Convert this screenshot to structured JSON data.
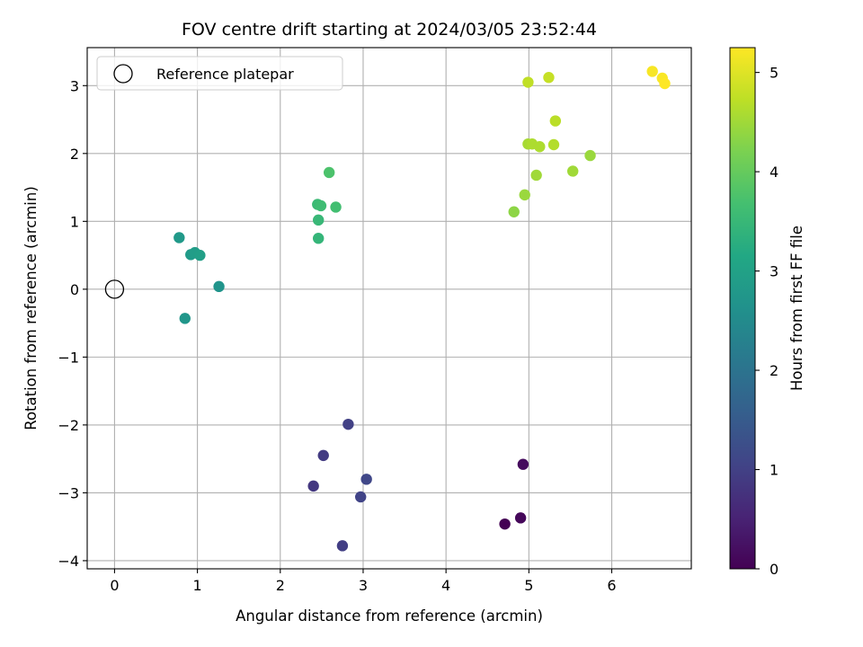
{
  "chart_data": {
    "type": "scatter",
    "title": "FOV centre drift starting at 2024/03/05 23:52:44",
    "xlabel": "Angular distance from reference (arcmin)",
    "ylabel": "Rotation from reference (arcmin)",
    "xlim": [
      -0.33,
      6.96
    ],
    "ylim": [
      -4.12,
      3.56
    ],
    "xticks": [
      0,
      1,
      2,
      3,
      4,
      5,
      6
    ],
    "yticks": [
      -4,
      -3,
      -2,
      -1,
      0,
      1,
      2,
      3
    ],
    "grid": true,
    "colormap": "viridis",
    "colorbar": {
      "label": "Hours from first FF file",
      "range": [
        0,
        5.25
      ],
      "ticks": [
        0,
        1,
        2,
        3,
        4,
        5
      ]
    },
    "legend": {
      "position": "top-left",
      "entries": [
        "Reference platepar"
      ]
    },
    "reference_point": {
      "x": 0,
      "y": 0
    },
    "points": [
      {
        "x": 4.71,
        "y": -3.46,
        "hours": 0.0
      },
      {
        "x": 4.9,
        "y": -3.37,
        "hours": 0.1
      },
      {
        "x": 4.93,
        "y": -2.58,
        "hours": 0.15
      },
      {
        "x": 2.4,
        "y": -2.9,
        "hours": 0.85
      },
      {
        "x": 2.52,
        "y": -2.45,
        "hours": 0.9
      },
      {
        "x": 2.75,
        "y": -3.78,
        "hours": 0.95
      },
      {
        "x": 2.82,
        "y": -1.99,
        "hours": 1.0
      },
      {
        "x": 2.97,
        "y": -3.06,
        "hours": 1.05
      },
      {
        "x": 3.04,
        "y": -2.8,
        "hours": 1.1
      },
      {
        "x": 0.85,
        "y": -0.43,
        "hours": 2.75
      },
      {
        "x": 1.26,
        "y": 0.04,
        "hours": 2.7
      },
      {
        "x": 0.78,
        "y": 0.76,
        "hours": 2.8
      },
      {
        "x": 0.92,
        "y": 0.51,
        "hours": 2.85
      },
      {
        "x": 0.97,
        "y": 0.54,
        "hours": 2.9
      },
      {
        "x": 1.03,
        "y": 0.5,
        "hours": 2.95
      },
      {
        "x": 2.46,
        "y": 0.75,
        "hours": 3.45
      },
      {
        "x": 2.46,
        "y": 1.02,
        "hours": 3.5
      },
      {
        "x": 2.45,
        "y": 1.25,
        "hours": 3.55
      },
      {
        "x": 2.49,
        "y": 1.23,
        "hours": 3.6
      },
      {
        "x": 2.67,
        "y": 1.21,
        "hours": 3.65
      },
      {
        "x": 2.59,
        "y": 1.72,
        "hours": 3.75
      },
      {
        "x": 4.82,
        "y": 1.14,
        "hours": 4.35
      },
      {
        "x": 4.95,
        "y": 1.39,
        "hours": 4.45
      },
      {
        "x": 5.09,
        "y": 1.68,
        "hours": 4.5
      },
      {
        "x": 5.53,
        "y": 1.74,
        "hours": 4.5
      },
      {
        "x": 5.74,
        "y": 1.97,
        "hours": 4.45
      },
      {
        "x": 4.99,
        "y": 2.14,
        "hours": 4.55
      },
      {
        "x": 5.04,
        "y": 2.14,
        "hours": 4.6
      },
      {
        "x": 5.13,
        "y": 2.1,
        "hours": 4.6
      },
      {
        "x": 5.3,
        "y": 2.13,
        "hours": 4.65
      },
      {
        "x": 5.32,
        "y": 2.48,
        "hours": 4.7
      },
      {
        "x": 4.99,
        "y": 3.05,
        "hours": 4.75
      },
      {
        "x": 5.24,
        "y": 3.12,
        "hours": 4.8
      },
      {
        "x": 6.49,
        "y": 3.21,
        "hours": 5.2
      },
      {
        "x": 6.61,
        "y": 3.11,
        "hours": 5.22
      },
      {
        "x": 6.64,
        "y": 3.03,
        "hours": 5.25
      }
    ]
  }
}
